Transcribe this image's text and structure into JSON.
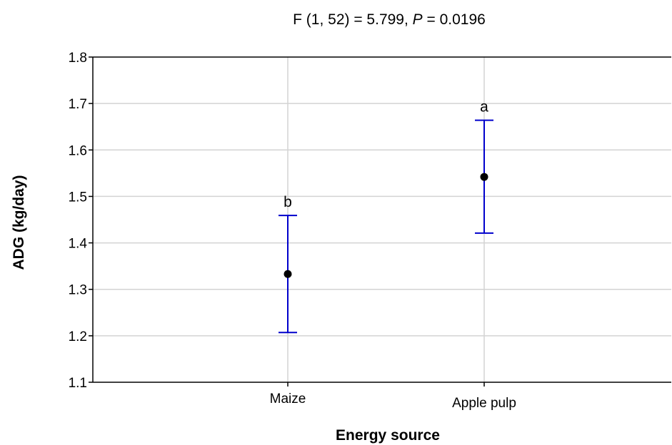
{
  "chart_data": {
    "type": "scatter",
    "title_parts": {
      "prefix": "F (1, 52) = 5.799, ",
      "p_symbol": "P",
      "p_value": " = 0.0196"
    },
    "xlabel": "Energy source",
    "ylabel": "ADG (kg/day)",
    "categories": [
      "Maize",
      "Apple pulp"
    ],
    "means": [
      1.333,
      1.542
    ],
    "ci_lower": [
      1.207,
      1.421
    ],
    "ci_upper": [
      1.459,
      1.664
    ],
    "group_labels": [
      "b",
      "a"
    ],
    "ylim": [
      1.1,
      1.8
    ],
    "yticks": [
      "1.1",
      "1.2",
      "1.3",
      "1.4",
      "1.5",
      "1.6",
      "1.7",
      "1.8"
    ],
    "grid": true,
    "colors": {
      "error_bar": "#0000cc",
      "point": "#000000",
      "grid": "#d3d3d3",
      "axis": "#000000"
    }
  }
}
